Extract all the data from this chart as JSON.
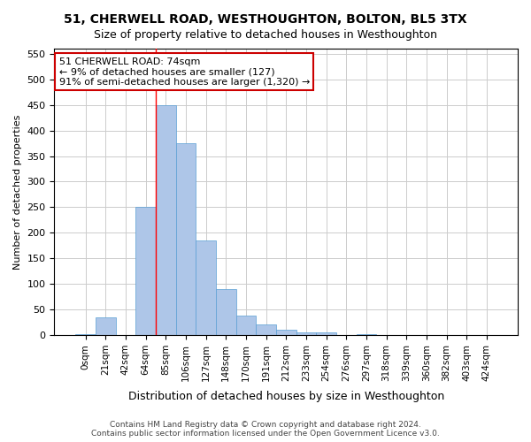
{
  "title": "51, CHERWELL ROAD, WESTHOUGHTON, BOLTON, BL5 3TX",
  "subtitle": "Size of property relative to detached houses in Westhoughton",
  "xlabel": "Distribution of detached houses by size in Westhoughton",
  "ylabel": "Number of detached properties",
  "bar_color": "#aec6e8",
  "bar_edge_color": "#5a9fd4",
  "bin_labels": [
    "0sqm",
    "21sqm",
    "42sqm",
    "64sqm",
    "85sqm",
    "106sqm",
    "127sqm",
    "148sqm",
    "170sqm",
    "191sqm",
    "212sqm",
    "233sqm",
    "254sqm",
    "276sqm",
    "297sqm",
    "318sqm",
    "339sqm",
    "360sqm",
    "382sqm",
    "403sqm",
    "424sqm"
  ],
  "bar_values": [
    2,
    35,
    0,
    250,
    450,
    375,
    185,
    90,
    38,
    20,
    10,
    5,
    5,
    0,
    2,
    0,
    0,
    0,
    0,
    0,
    0
  ],
  "ylim": [
    0,
    560
  ],
  "yticks": [
    0,
    50,
    100,
    150,
    200,
    250,
    300,
    350,
    400,
    450,
    500,
    550
  ],
  "red_line_x": 3.5,
  "annotation_text": "51 CHERWELL ROAD: 74sqm\n← 9% of detached houses are smaller (127)\n91% of semi-detached houses are larger (1,320) →",
  "annotation_box_color": "#ffffff",
  "annotation_border_color": "#cc0000",
  "footer_line1": "Contains HM Land Registry data © Crown copyright and database right 2024.",
  "footer_line2": "Contains public sector information licensed under the Open Government Licence v3.0.",
  "bg_color": "#ffffff",
  "grid_color": "#cccccc"
}
